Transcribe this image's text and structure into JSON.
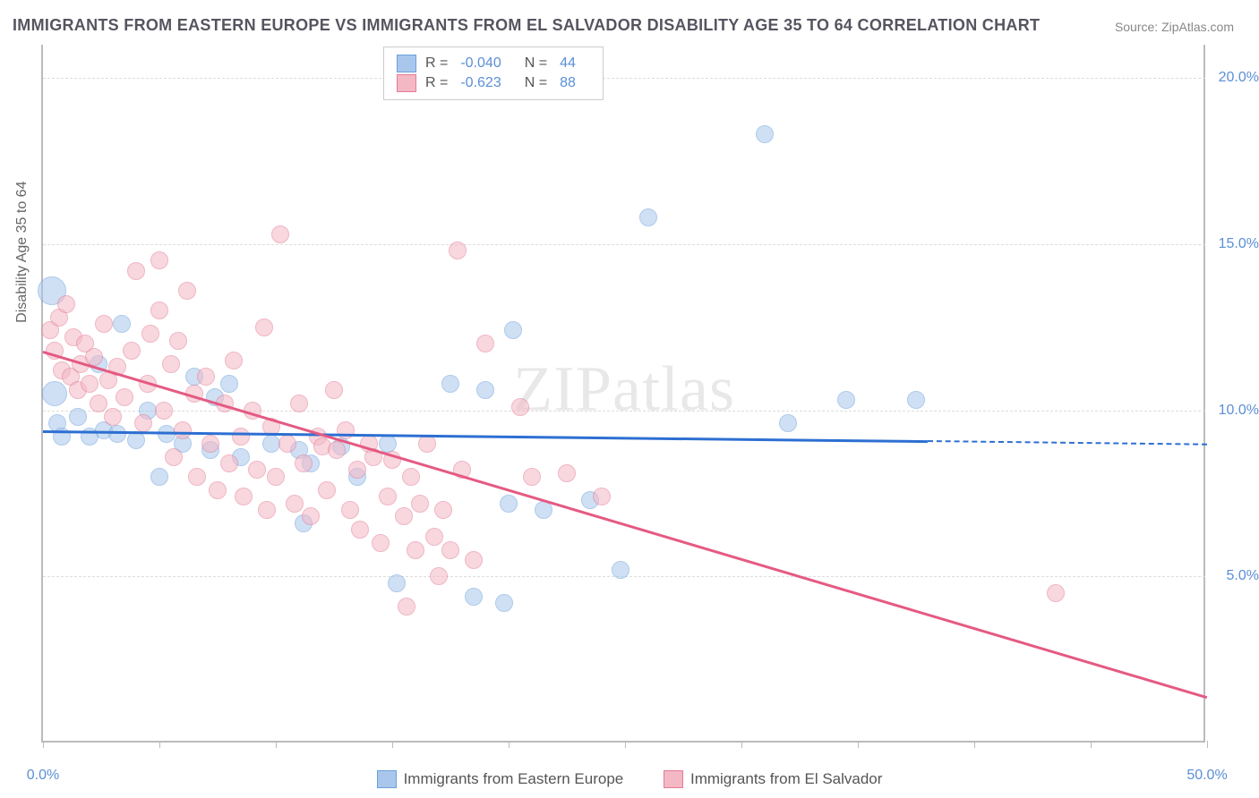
{
  "title": "IMMIGRANTS FROM EASTERN EUROPE VS IMMIGRANTS FROM EL SALVADOR DISABILITY AGE 35 TO 64 CORRELATION CHART",
  "source": "Source: ZipAtlas.com",
  "watermark": "ZIPatlas",
  "y_axis_title": "Disability Age 35 to 64",
  "chart": {
    "type": "scatter",
    "xlim": [
      0,
      50
    ],
    "ylim": [
      0,
      21
    ],
    "x_ticks": [
      0,
      5,
      10,
      15,
      20,
      25,
      30,
      35,
      40,
      45,
      50
    ],
    "x_tick_labels": {
      "0": "0.0%",
      "50": "50.0%"
    },
    "y_grid": [
      5,
      10,
      15,
      20
    ],
    "y_tick_labels": {
      "5": "5.0%",
      "10": "10.0%",
      "15": "15.0%",
      "20": "20.0%"
    },
    "plot_background": "#ffffff",
    "grid_color": "#dddddd",
    "axis_color": "#bbbbbb",
    "label_color": "#5b8fd6",
    "title_color": "#555560",
    "title_fontsize": 18,
    "label_fontsize": 16
  },
  "series": [
    {
      "name": "Immigrants from Eastern Europe",
      "fill": "#a9c7ec",
      "stroke": "#6c9fdd",
      "fill_opacity": 0.55,
      "marker_radius": 10,
      "R": "-0.040",
      "N": "44",
      "trend": {
        "x1": 0,
        "y1": 9.4,
        "x2": 38,
        "y2": 9.1,
        "dash_x2": 50,
        "dash_y2": 9.0,
        "color": "#2d6fd2",
        "width": 2.5
      },
      "points": [
        {
          "x": 0.4,
          "y": 13.6,
          "r": 16
        },
        {
          "x": 0.5,
          "y": 10.5,
          "r": 14
        },
        {
          "x": 0.6,
          "y": 9.6
        },
        {
          "x": 0.8,
          "y": 9.2
        },
        {
          "x": 1.5,
          "y": 9.8
        },
        {
          "x": 2.0,
          "y": 9.2
        },
        {
          "x": 2.4,
          "y": 11.4
        },
        {
          "x": 2.6,
          "y": 9.4
        },
        {
          "x": 3.2,
          "y": 9.3
        },
        {
          "x": 3.4,
          "y": 12.6
        },
        {
          "x": 4.0,
          "y": 9.1
        },
        {
          "x": 4.5,
          "y": 10.0
        },
        {
          "x": 5.0,
          "y": 8.0
        },
        {
          "x": 5.3,
          "y": 9.3
        },
        {
          "x": 6.0,
          "y": 9.0
        },
        {
          "x": 6.5,
          "y": 11.0
        },
        {
          "x": 7.2,
          "y": 8.8
        },
        {
          "x": 7.4,
          "y": 10.4
        },
        {
          "x": 8.0,
          "y": 10.8
        },
        {
          "x": 8.5,
          "y": 8.6
        },
        {
          "x": 9.8,
          "y": 9.0
        },
        {
          "x": 11.0,
          "y": 8.8
        },
        {
          "x": 11.2,
          "y": 6.6
        },
        {
          "x": 11.5,
          "y": 8.4
        },
        {
          "x": 12.8,
          "y": 8.9
        },
        {
          "x": 13.5,
          "y": 8.0
        },
        {
          "x": 14.8,
          "y": 9.0
        },
        {
          "x": 15.2,
          "y": 4.8
        },
        {
          "x": 17.5,
          "y": 10.8
        },
        {
          "x": 18.5,
          "y": 4.4
        },
        {
          "x": 19.0,
          "y": 10.6
        },
        {
          "x": 19.8,
          "y": 4.2
        },
        {
          "x": 20.0,
          "y": 7.2
        },
        {
          "x": 20.2,
          "y": 12.4
        },
        {
          "x": 21.5,
          "y": 7.0
        },
        {
          "x": 23.5,
          "y": 7.3
        },
        {
          "x": 24.8,
          "y": 5.2
        },
        {
          "x": 26.0,
          "y": 15.8
        },
        {
          "x": 31.0,
          "y": 18.3
        },
        {
          "x": 32.0,
          "y": 9.6
        },
        {
          "x": 34.5,
          "y": 10.3
        },
        {
          "x": 37.5,
          "y": 10.3
        }
      ]
    },
    {
      "name": "Immigrants from El Salvador",
      "fill": "#f4b8c5",
      "stroke": "#e37b95",
      "fill_opacity": 0.55,
      "marker_radius": 10,
      "R": "-0.623",
      "N": "88",
      "trend": {
        "x1": 0,
        "y1": 11.8,
        "x2": 50,
        "y2": 1.4,
        "color": "#e55a82",
        "width": 2.5
      },
      "points": [
        {
          "x": 0.3,
          "y": 12.4
        },
        {
          "x": 0.5,
          "y": 11.8
        },
        {
          "x": 0.7,
          "y": 12.8
        },
        {
          "x": 0.8,
          "y": 11.2
        },
        {
          "x": 1.0,
          "y": 13.2
        },
        {
          "x": 1.2,
          "y": 11.0
        },
        {
          "x": 1.3,
          "y": 12.2
        },
        {
          "x": 1.5,
          "y": 10.6
        },
        {
          "x": 1.6,
          "y": 11.4
        },
        {
          "x": 1.8,
          "y": 12.0
        },
        {
          "x": 2.0,
          "y": 10.8
        },
        {
          "x": 2.2,
          "y": 11.6
        },
        {
          "x": 2.4,
          "y": 10.2
        },
        {
          "x": 2.6,
          "y": 12.6
        },
        {
          "x": 2.8,
          "y": 10.9
        },
        {
          "x": 3.0,
          "y": 9.8
        },
        {
          "x": 3.2,
          "y": 11.3
        },
        {
          "x": 3.5,
          "y": 10.4
        },
        {
          "x": 3.8,
          "y": 11.8
        },
        {
          "x": 4.0,
          "y": 14.2
        },
        {
          "x": 4.3,
          "y": 9.6
        },
        {
          "x": 4.5,
          "y": 10.8
        },
        {
          "x": 4.6,
          "y": 12.3
        },
        {
          "x": 5.0,
          "y": 13.0
        },
        {
          "x": 5.0,
          "y": 14.5
        },
        {
          "x": 5.2,
          "y": 10.0
        },
        {
          "x": 5.5,
          "y": 11.4
        },
        {
          "x": 5.6,
          "y": 8.6
        },
        {
          "x": 5.8,
          "y": 12.1
        },
        {
          "x": 6.0,
          "y": 9.4
        },
        {
          "x": 6.2,
          "y": 13.6
        },
        {
          "x": 6.5,
          "y": 10.5
        },
        {
          "x": 6.6,
          "y": 8.0
        },
        {
          "x": 7.0,
          "y": 11.0
        },
        {
          "x": 7.2,
          "y": 9.0
        },
        {
          "x": 7.5,
          "y": 7.6
        },
        {
          "x": 7.8,
          "y": 10.2
        },
        {
          "x": 8.0,
          "y": 8.4
        },
        {
          "x": 8.2,
          "y": 11.5
        },
        {
          "x": 8.5,
          "y": 9.2
        },
        {
          "x": 8.6,
          "y": 7.4
        },
        {
          "x": 9.0,
          "y": 10.0
        },
        {
          "x": 9.2,
          "y": 8.2
        },
        {
          "x": 9.5,
          "y": 12.5
        },
        {
          "x": 9.6,
          "y": 7.0
        },
        {
          "x": 9.8,
          "y": 9.5
        },
        {
          "x": 10.0,
          "y": 8.0
        },
        {
          "x": 10.2,
          "y": 15.3
        },
        {
          "x": 10.5,
          "y": 9.0
        },
        {
          "x": 10.8,
          "y": 7.2
        },
        {
          "x": 11.0,
          "y": 10.2
        },
        {
          "x": 11.2,
          "y": 8.4
        },
        {
          "x": 11.5,
          "y": 6.8
        },
        {
          "x": 11.8,
          "y": 9.2
        },
        {
          "x": 12.0,
          "y": 8.9
        },
        {
          "x": 12.2,
          "y": 7.6
        },
        {
          "x": 12.5,
          "y": 10.6
        },
        {
          "x": 12.6,
          "y": 8.8
        },
        {
          "x": 13.0,
          "y": 9.4
        },
        {
          "x": 13.2,
          "y": 7.0
        },
        {
          "x": 13.5,
          "y": 8.2
        },
        {
          "x": 13.6,
          "y": 6.4
        },
        {
          "x": 14.0,
          "y": 9.0
        },
        {
          "x": 14.2,
          "y": 8.6
        },
        {
          "x": 14.5,
          "y": 6.0
        },
        {
          "x": 14.8,
          "y": 7.4
        },
        {
          "x": 15.0,
          "y": 8.5
        },
        {
          "x": 15.5,
          "y": 6.8
        },
        {
          "x": 15.6,
          "y": 4.1
        },
        {
          "x": 15.8,
          "y": 8.0
        },
        {
          "x": 16.0,
          "y": 5.8
        },
        {
          "x": 16.2,
          "y": 7.2
        },
        {
          "x": 16.5,
          "y": 9.0
        },
        {
          "x": 16.8,
          "y": 6.2
        },
        {
          "x": 17.0,
          "y": 5.0
        },
        {
          "x": 17.2,
          "y": 7.0
        },
        {
          "x": 17.5,
          "y": 5.8
        },
        {
          "x": 17.8,
          "y": 14.8
        },
        {
          "x": 18.0,
          "y": 8.2
        },
        {
          "x": 18.5,
          "y": 5.5
        },
        {
          "x": 19.0,
          "y": 12.0
        },
        {
          "x": 20.5,
          "y": 10.1
        },
        {
          "x": 21.0,
          "y": 8.0
        },
        {
          "x": 22.5,
          "y": 8.1
        },
        {
          "x": 24.0,
          "y": 7.4
        },
        {
          "x": 43.5,
          "y": 4.5
        }
      ]
    }
  ],
  "bottom_legend": [
    "Immigrants from Eastern Europe",
    "Immigrants from El Salvador"
  ]
}
